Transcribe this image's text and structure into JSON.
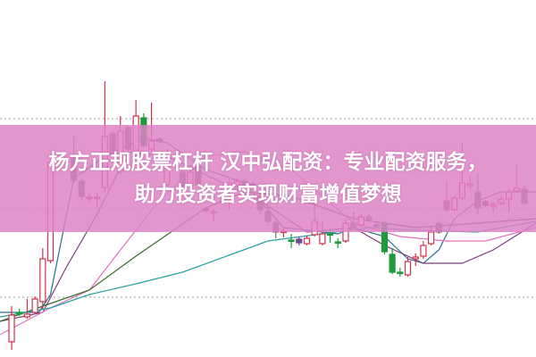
{
  "banner": {
    "line1": "杨方正规股票杠杆 汉中弘配资：专业配资服务，",
    "line2": "助力投资者实现财富增值梦想"
  },
  "colors": {
    "up": "#d0304a",
    "down": "#7a6e6a",
    "green": "#1e9a3a",
    "doji_purple": "#6a4a8a",
    "banner": "#de82c4",
    "grid": "#a0a0a0"
  },
  "chart_data": {
    "type": "candlestick",
    "title": "",
    "xlim": [
      -1.5,
      67.5
    ],
    "ylim": [
      0,
      40
    ],
    "grid": {
      "horizontal": true,
      "style": "dotted",
      "levels": [
        26.7,
        16.7,
        6.7
      ]
    },
    "candles": [
      {
        "t": 0,
        "o": 1.7,
        "c": 4.7,
        "h": 5.7,
        "l": 0.8,
        "k": "up"
      },
      {
        "t": 1,
        "o": 5.0,
        "c": 4.8,
        "h": 5.4,
        "l": 4.6,
        "k": "green"
      },
      {
        "t": 2,
        "o": 4.5,
        "c": 4.8,
        "h": 6.5,
        "l": 4.3,
        "k": "up"
      },
      {
        "t": 3,
        "o": 5.0,
        "c": 6.5,
        "h": 6.8,
        "l": 4.8,
        "k": "up"
      },
      {
        "t": 4,
        "o": 6.2,
        "c": 11.0,
        "h": 12.2,
        "l": 5.4,
        "k": "up"
      },
      {
        "t": 5,
        "o": 10.8,
        "c": 21.8,
        "h": 22.2,
        "l": 10.5,
        "k": "up"
      },
      {
        "t": 8,
        "o": 22.7,
        "c": 19.8,
        "h": 24.7,
        "l": 19.5,
        "k": "down"
      },
      {
        "t": 9,
        "o": 19.7,
        "c": 18.0,
        "h": 20.0,
        "l": 17.5,
        "k": "down"
      },
      {
        "t": 10,
        "o": 17.9,
        "c": 17.8,
        "h": 18.3,
        "l": 17.3,
        "k": "up"
      },
      {
        "t": 11,
        "o": 17.8,
        "c": 17.9,
        "h": 18.3,
        "l": 16.7,
        "k": "up"
      },
      {
        "t": 12,
        "o": 19.0,
        "c": 24.7,
        "h": 30.9,
        "l": 18.5,
        "k": "up"
      },
      {
        "t": 13,
        "o": 25.0,
        "c": 22.7,
        "h": 25.3,
        "l": 22.4,
        "k": "down"
      },
      {
        "t": 14,
        "o": 20.8,
        "c": 25.3,
        "h": 27.0,
        "l": 20.5,
        "k": "up"
      },
      {
        "t": 15,
        "o": 25.7,
        "c": 23.3,
        "h": 26.0,
        "l": 23.0,
        "k": "down"
      },
      {
        "t": 16,
        "o": 22.8,
        "c": 27.0,
        "h": 28.8,
        "l": 22.5,
        "k": "up"
      },
      {
        "t": 17,
        "o": 26.8,
        "c": 23.7,
        "h": 27.3,
        "l": 23.5,
        "k": "green"
      },
      {
        "t": 18,
        "o": 23.3,
        "c": 24.2,
        "h": 28.5,
        "l": 23.0,
        "k": "up"
      },
      {
        "t": 19,
        "o": 24.4,
        "c": 24.2,
        "h": 24.6,
        "l": 24.0,
        "k": "purple"
      },
      {
        "t": 20,
        "o": 19.3,
        "c": 21.5,
        "h": 23.3,
        "l": 19.2,
        "k": "up"
      },
      {
        "t": 22,
        "o": 20.7,
        "c": 19.2,
        "h": 21.0,
        "l": 18.8,
        "k": "down"
      },
      {
        "t": 23,
        "o": 19.2,
        "c": 20.7,
        "h": 21.5,
        "l": 18.8,
        "k": "up"
      },
      {
        "t": 24,
        "o": 21.3,
        "c": 19.3,
        "h": 21.6,
        "l": 19.0,
        "k": "down"
      },
      {
        "t": 25,
        "o": 16.6,
        "c": 16.4,
        "h": 16.8,
        "l": 16.2,
        "k": "purple"
      },
      {
        "t": 26,
        "o": 16.3,
        "c": 16.3,
        "h": 16.6,
        "l": 15.2,
        "k": "up"
      },
      {
        "t": 28,
        "o": 19.1,
        "c": 19.5,
        "h": 20.0,
        "l": 16.5,
        "k": "up"
      },
      {
        "t": 29,
        "o": 19.2,
        "c": 19.7,
        "h": 20.0,
        "l": 18.9,
        "k": "up"
      },
      {
        "t": 30,
        "o": 19.7,
        "c": 19.2,
        "h": 20.0,
        "l": 18.9,
        "k": "down"
      },
      {
        "t": 31,
        "o": 19.4,
        "c": 19.2,
        "h": 19.6,
        "l": 19.0,
        "k": "purple"
      },
      {
        "t": 32,
        "o": 18.0,
        "c": 16.5,
        "h": 18.3,
        "l": 16.0,
        "k": "down"
      },
      {
        "t": 33,
        "o": 16.3,
        "c": 15.2,
        "h": 17.3,
        "l": 14.8,
        "k": "down"
      },
      {
        "t": 34,
        "o": 15.0,
        "c": 14.0,
        "h": 15.3,
        "l": 13.3,
        "k": "down"
      },
      {
        "t": 35,
        "o": 14.0,
        "c": 14.1,
        "h": 14.5,
        "l": 13.4,
        "k": "up"
      },
      {
        "t": 36,
        "o": 13.1,
        "c": 13.0,
        "h": 13.8,
        "l": 12.2,
        "k": "green"
      },
      {
        "t": 37,
        "o": 13.2,
        "c": 12.8,
        "h": 13.5,
        "l": 12.5,
        "k": "purple"
      },
      {
        "t": 38,
        "o": 12.7,
        "c": 13.3,
        "h": 13.6,
        "l": 12.5,
        "k": "up"
      },
      {
        "t": 39,
        "o": 13.7,
        "c": 15.2,
        "h": 17.3,
        "l": 13.5,
        "k": "up"
      },
      {
        "t": 40,
        "o": 12.7,
        "c": 13.8,
        "h": 15.2,
        "l": 12.5,
        "k": "up"
      },
      {
        "t": 41,
        "o": 13.8,
        "c": 13.7,
        "h": 14.4,
        "l": 12.8,
        "k": "green"
      },
      {
        "t": 42,
        "o": 12.9,
        "c": 12.8,
        "h": 13.3,
        "l": 12.2,
        "k": "green"
      },
      {
        "t": 43,
        "o": 13.0,
        "c": 15.0,
        "h": 15.4,
        "l": 12.8,
        "k": "up"
      },
      {
        "t": 44,
        "o": 15.0,
        "c": 14.6,
        "h": 16.3,
        "l": 14.4,
        "k": "down"
      },
      {
        "t": 45,
        "o": 14.8,
        "c": 15.7,
        "h": 16.0,
        "l": 14.6,
        "k": "up"
      },
      {
        "t": 46,
        "o": 15.7,
        "c": 15.4,
        "h": 16.0,
        "l": 15.2,
        "k": "down"
      },
      {
        "t": 47,
        "o": 14.8,
        "c": 14.7,
        "h": 15.1,
        "l": 14.6,
        "k": "down"
      },
      {
        "t": 48,
        "o": 15.0,
        "c": 11.8,
        "h": 15.3,
        "l": 11.5,
        "k": "green"
      },
      {
        "t": 49,
        "o": 11.5,
        "c": 9.5,
        "h": 12.2,
        "l": 9.3,
        "k": "green"
      },
      {
        "t": 50,
        "o": 9.5,
        "c": 9.4,
        "h": 10.0,
        "l": 9.0,
        "k": "green"
      },
      {
        "t": 51,
        "o": 9.2,
        "c": 10.7,
        "h": 11.2,
        "l": 9.0,
        "k": "up"
      },
      {
        "t": 52,
        "o": 11.0,
        "c": 11.2,
        "h": 11.6,
        "l": 10.2,
        "k": "up"
      },
      {
        "t": 53,
        "o": 11.3,
        "c": 12.5,
        "h": 13.0,
        "l": 11.0,
        "k": "up"
      },
      {
        "t": 54,
        "o": 12.7,
        "c": 14.0,
        "h": 14.6,
        "l": 12.5,
        "k": "up"
      },
      {
        "t": 55,
        "o": 15.0,
        "c": 14.0,
        "h": 15.3,
        "l": 13.8,
        "k": "down"
      },
      {
        "t": 56,
        "o": 17.5,
        "c": 16.5,
        "h": 19.7,
        "l": 16.3,
        "k": "down"
      },
      {
        "t": 57,
        "o": 16.5,
        "c": 17.8,
        "h": 18.0,
        "l": 16.3,
        "k": "up"
      },
      {
        "t": 58,
        "o": 17.8,
        "c": 19.5,
        "h": 24.0,
        "l": 17.5,
        "k": "up"
      },
      {
        "t": 59,
        "o": 19.2,
        "c": 19.4,
        "h": 20.3,
        "l": 18.8,
        "k": "up"
      },
      {
        "t": 60,
        "o": 18.5,
        "c": 16.7,
        "h": 20.5,
        "l": 16.0,
        "k": "down"
      },
      {
        "t": 61,
        "o": 17.4,
        "c": 17.0,
        "h": 17.6,
        "l": 16.8,
        "k": "purple"
      },
      {
        "t": 62,
        "o": 16.9,
        "c": 17.1,
        "h": 17.4,
        "l": 16.2,
        "k": "up"
      },
      {
        "t": 63,
        "o": 17.2,
        "c": 17.7,
        "h": 18.0,
        "l": 17.0,
        "k": "up"
      },
      {
        "t": 64,
        "o": 17.7,
        "c": 18.5,
        "h": 18.8,
        "l": 16.2,
        "k": "up"
      },
      {
        "t": 65,
        "o": 18.6,
        "c": 18.9,
        "h": 21.5,
        "l": 18.4,
        "k": "up"
      },
      {
        "t": 66,
        "o": 18.8,
        "c": 17.2,
        "h": 19.2,
        "l": 17.0,
        "k": "down"
      }
    ],
    "moving_averages": [
      {
        "color": "#2a6f8f",
        "points": [
          [
            -1.5,
            5.0
          ],
          [
            3.5,
            5.0
          ],
          [
            5,
            7
          ],
          [
            8,
            20
          ],
          [
            12,
            22.5
          ],
          [
            17,
            24.5
          ],
          [
            20,
            24
          ],
          [
            25,
            21
          ],
          [
            30,
            19.5
          ],
          [
            35,
            14.5
          ],
          [
            42,
            13.8
          ],
          [
            44,
            14.5
          ],
          [
            48,
            13.5
          ],
          [
            51,
            11
          ],
          [
            53,
            10.5
          ],
          [
            55,
            12
          ],
          [
            57,
            15.5
          ],
          [
            60,
            17.5
          ],
          [
            63,
            18.5
          ],
          [
            67.5,
            18.5
          ]
        ]
      },
      {
        "color": "#7a3d7a",
        "points": [
          [
            -1.5,
            4
          ],
          [
            4,
            5
          ],
          [
            7,
            10
          ],
          [
            11,
            16
          ],
          [
            15,
            23
          ],
          [
            20,
            22.5
          ],
          [
            26,
            20
          ],
          [
            32,
            17.5
          ],
          [
            38,
            14
          ],
          [
            44,
            14.5
          ],
          [
            48,
            12.5
          ],
          [
            53,
            10.5
          ],
          [
            58,
            10.5
          ],
          [
            62,
            12
          ],
          [
            67.5,
            15
          ]
        ]
      },
      {
        "color": "#e070c0",
        "points": [
          [
            -1.5,
            2.5
          ],
          [
            5,
            5.5
          ],
          [
            10,
            7.5
          ],
          [
            14,
            12
          ],
          [
            19,
            17.5
          ],
          [
            25,
            22.5
          ],
          [
            30,
            23
          ],
          [
            36,
            21
          ],
          [
            44,
            15
          ],
          [
            50,
            13.5
          ],
          [
            56,
            13
          ],
          [
            61,
            13
          ],
          [
            67.5,
            14.5
          ]
        ]
      },
      {
        "color": "#3a6b2a",
        "points": [
          [
            -1.5,
            4
          ],
          [
            5,
            6
          ],
          [
            10,
            7.5
          ],
          [
            16,
            11.3
          ],
          [
            21,
            14.3
          ],
          [
            25,
            16.7
          ],
          [
            30,
            18.5
          ],
          [
            36,
            18
          ],
          [
            44,
            15.5
          ],
          [
            52,
            14.5
          ],
          [
            60,
            15
          ],
          [
            67.5,
            15.5
          ]
        ]
      },
      {
        "color": "#2aa0a0",
        "points": [
          [
            -1.5,
            4.5
          ],
          [
            5,
            5.5
          ],
          [
            10,
            7
          ],
          [
            16,
            8.2
          ],
          [
            22,
            9.5
          ],
          [
            33,
            13
          ],
          [
            40,
            13.8
          ],
          [
            46,
            14.5
          ],
          [
            52,
            14.2
          ],
          [
            60,
            14
          ],
          [
            67.5,
            15.2
          ]
        ]
      }
    ]
  }
}
